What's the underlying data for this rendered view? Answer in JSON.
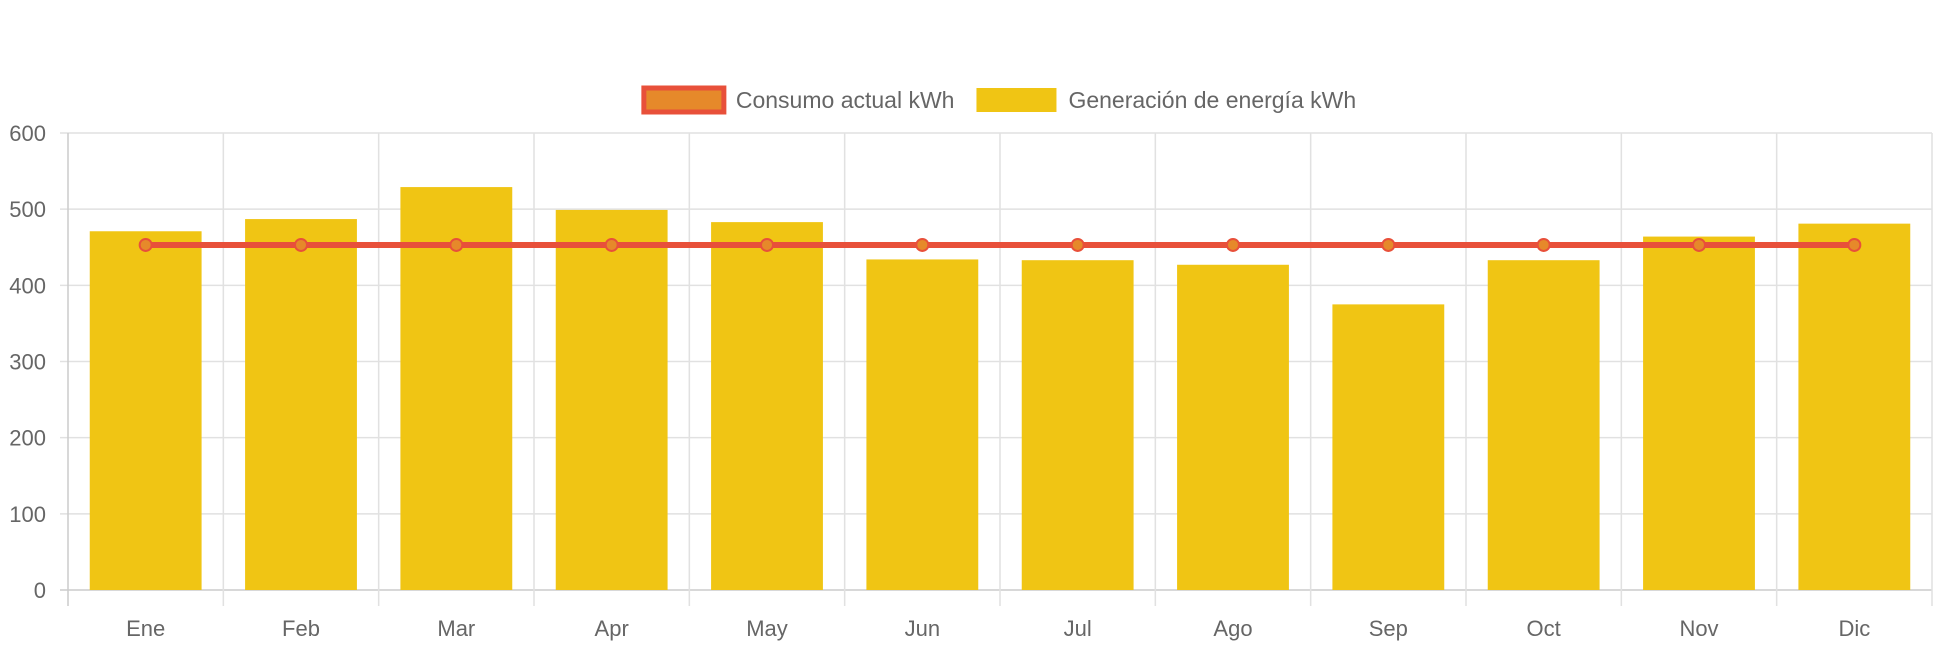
{
  "chart_data": {
    "type": "bar",
    "categories": [
      "Ene",
      "Feb",
      "Mar",
      "Apr",
      "May",
      "Jun",
      "Jul",
      "Ago",
      "Sep",
      "Oct",
      "Nov",
      "Dic"
    ],
    "series": [
      {
        "name": "Generación de energía kWh",
        "type": "bar",
        "color": "#f0c514",
        "values": [
          471,
          487,
          529,
          499,
          483,
          434,
          433,
          427,
          375,
          433,
          464,
          481
        ]
      },
      {
        "name": "Consumo actual kWh",
        "type": "line",
        "color": "#e8503a",
        "fill_color": "#e6892a",
        "values": [
          453,
          453,
          453,
          453,
          453,
          453,
          453,
          453,
          453,
          453,
          453,
          453
        ]
      }
    ],
    "legend_order": [
      "Consumo actual kWh",
      "Generación de energía kWh"
    ],
    "legend_position": "top",
    "ylim": [
      0,
      600
    ],
    "yticks": [
      0,
      100,
      200,
      300,
      400,
      500,
      600
    ],
    "grid": true,
    "title": "",
    "xlabel": "",
    "ylabel": ""
  }
}
